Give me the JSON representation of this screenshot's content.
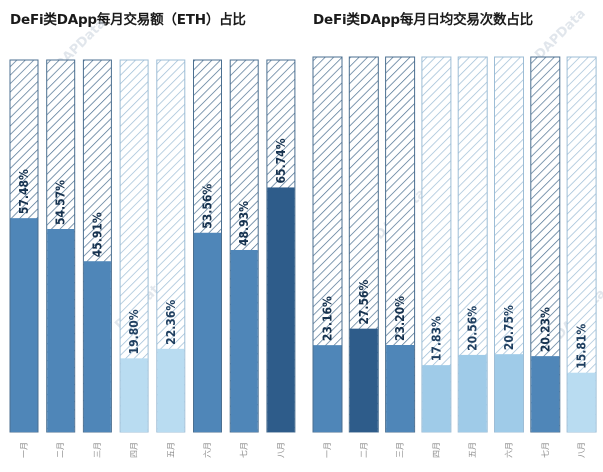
{
  "colors": {
    "dark": "#2e5c8a",
    "mid": "#4f86b8",
    "light": "#9fcbe8",
    "pale": "#b9dcf1",
    "hatch": "#4b6f90",
    "hatch_light": "#9dbdd6"
  },
  "watermark": "DAPData",
  "chart_data": [
    {
      "type": "bar",
      "subtype": "percent-stacked",
      "title": "DeFi类DApp每月交易额（ETH）占比",
      "categories": [
        "一月",
        "二月",
        "三月",
        "四月",
        "五月",
        "六月",
        "七月",
        "八月"
      ],
      "values": [
        57.48,
        54.57,
        45.91,
        19.8,
        22.36,
        53.56,
        48.93,
        65.74
      ],
      "labels": [
        "57.48%",
        "54.57%",
        "45.91%",
        "19.80%",
        "22.36%",
        "53.56%",
        "48.93%",
        "65.74%"
      ],
      "shades": [
        "mid",
        "mid",
        "mid",
        "pale",
        "pale",
        "mid",
        "mid",
        "dark"
      ],
      "ylim": [
        0,
        100
      ]
    },
    {
      "type": "bar",
      "subtype": "percent-stacked",
      "title": "DeFi类DApp每月日均交易次数占比",
      "categories": [
        "一月",
        "二月",
        "三月",
        "四月",
        "五月",
        "六月",
        "七月",
        "八月"
      ],
      "values": [
        23.16,
        27.56,
        23.2,
        17.83,
        20.56,
        20.75,
        20.23,
        15.81
      ],
      "labels": [
        "23.16%",
        "27.56%",
        "23.20%",
        "17.83%",
        "20.56%",
        "20.75%",
        "20.23%",
        "15.81%"
      ],
      "shades": [
        "mid",
        "dark",
        "mid",
        "light",
        "light",
        "light",
        "mid",
        "pale"
      ],
      "ylim": [
        0,
        100
      ]
    }
  ]
}
